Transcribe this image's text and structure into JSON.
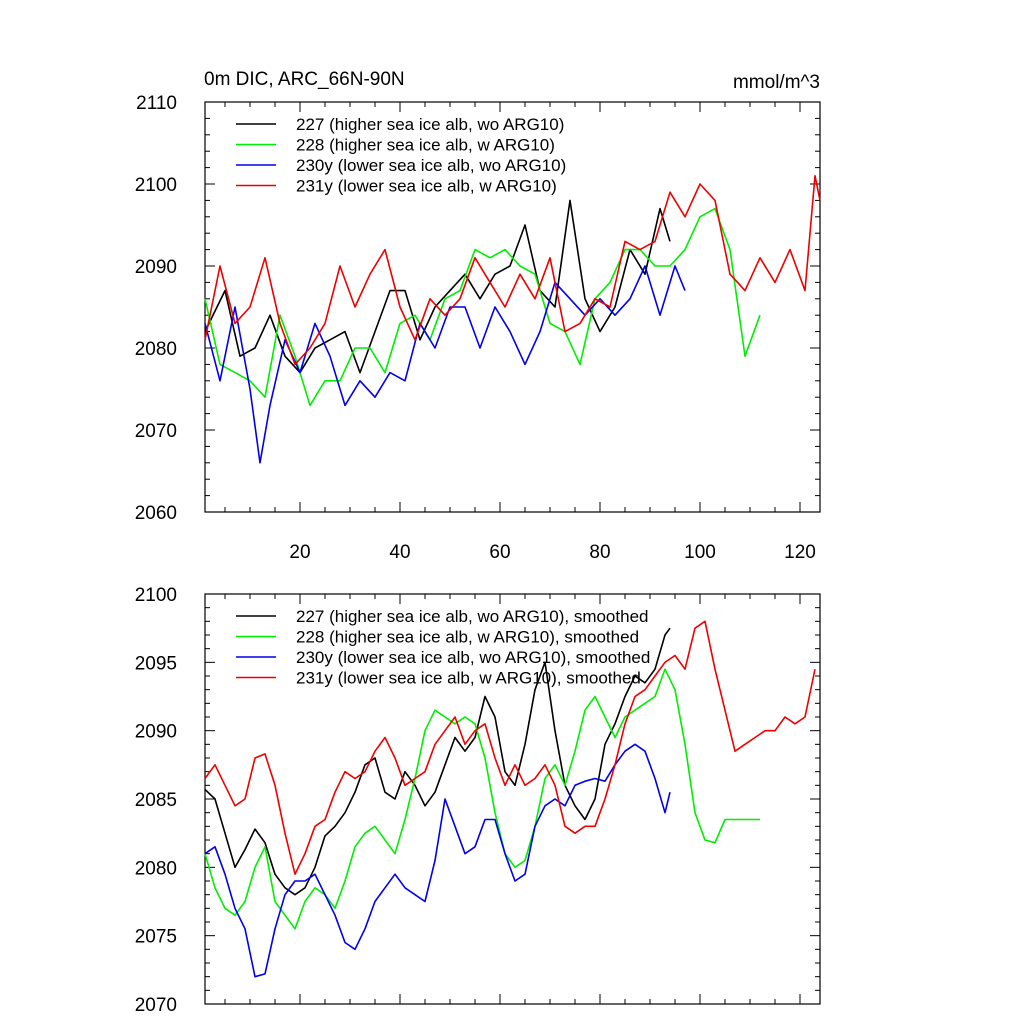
{
  "chart_data": [
    {
      "type": "line",
      "title": "0m DIC, ARC_66N-90N",
      "units": "mmol/m^3",
      "xlim": [
        1,
        124
      ],
      "ylim": [
        2060,
        2110
      ],
      "yticks": [
        2060,
        2070,
        2080,
        2090,
        2100,
        2110
      ],
      "xticks": [
        20,
        40,
        60,
        80,
        100,
        120
      ],
      "legend_position": "top-left",
      "series": [
        {
          "name": "227 (higher sea ice alb, wo ARG10)",
          "color": "#000000",
          "x": [
            1,
            5,
            8,
            11,
            14,
            17,
            20,
            23,
            26,
            29,
            32,
            35,
            38,
            41,
            44,
            47,
            50,
            53,
            56,
            59,
            62,
            65,
            68,
            71,
            74,
            77,
            80,
            83,
            86,
            89,
            92,
            94
          ],
          "y": [
            2082,
            2087,
            2079,
            2080,
            2084,
            2079,
            2077,
            2080,
            2081,
            2082,
            2077,
            2082,
            2087,
            2087,
            2081,
            2085,
            2087,
            2089,
            2086,
            2089,
            2090,
            2095,
            2087,
            2085,
            2098,
            2086,
            2082,
            2085,
            2092,
            2089,
            2097,
            2093
          ]
        },
        {
          "name": "228 (higher sea ice alb, w ARG10)",
          "color": "#00ee00",
          "x": [
            1,
            4,
            7,
            10,
            13,
            16,
            19,
            22,
            25,
            28,
            31,
            34,
            37,
            40,
            43,
            46,
            49,
            52,
            55,
            58,
            61,
            64,
            67,
            70,
            73,
            76,
            79,
            82,
            85,
            88,
            91,
            94,
            97,
            100,
            103,
            106,
            109,
            112
          ],
          "y": [
            2086,
            2078,
            2077,
            2076,
            2074,
            2084,
            2079,
            2073,
            2076,
            2076,
            2080,
            2080,
            2077,
            2083,
            2084,
            2081,
            2086,
            2087,
            2092,
            2091,
            2092,
            2090,
            2089,
            2083,
            2082,
            2078,
            2086,
            2088,
            2092,
            2092,
            2090,
            2090,
            2092,
            2096,
            2097,
            2092,
            2079,
            2084
          ]
        },
        {
          "name": "230y (lower sea ice alb, wo ARG10)",
          "color": "#0000ee",
          "x": [
            1,
            4,
            7,
            10,
            12,
            14,
            17,
            20,
            23,
            26,
            29,
            32,
            35,
            38,
            41,
            44,
            47,
            50,
            53,
            56,
            59,
            62,
            65,
            68,
            71,
            74,
            77,
            80,
            83,
            86,
            89,
            92,
            95,
            97
          ],
          "y": [
            2083,
            2076,
            2085,
            2075,
            2066,
            2073,
            2081,
            2077,
            2083,
            2079,
            2073,
            2076,
            2074,
            2077,
            2076,
            2083,
            2080,
            2085,
            2085,
            2080,
            2085,
            2082,
            2078,
            2082,
            2088,
            2086,
            2084,
            2086,
            2084,
            2086,
            2090,
            2084,
            2090,
            2087
          ]
        },
        {
          "name": "231y (lower sea ice alb, w ARG10)",
          "color": "#ee0000",
          "x": [
            1,
            4,
            7,
            10,
            13,
            16,
            19,
            22,
            25,
            28,
            31,
            34,
            37,
            40,
            43,
            46,
            49,
            52,
            55,
            58,
            61,
            64,
            67,
            70,
            73,
            76,
            79,
            82,
            85,
            88,
            91,
            94,
            97,
            100,
            103,
            106,
            109,
            112,
            115,
            118,
            121,
            123,
            124
          ],
          "y": [
            2081,
            2090,
            2083,
            2085,
            2091,
            2083,
            2078,
            2080,
            2083,
            2090,
            2085,
            2089,
            2092,
            2085,
            2081,
            2086,
            2084,
            2086,
            2091,
            2088,
            2085,
            2089,
            2086,
            2091,
            2082,
            2083,
            2086,
            2085,
            2093,
            2092,
            2093,
            2099,
            2096,
            2100,
            2098,
            2089,
            2087,
            2091,
            2088,
            2092,
            2087,
            2101,
            2098
          ]
        }
      ]
    },
    {
      "type": "line",
      "title": "",
      "xlim": [
        1,
        124
      ],
      "ylim": [
        2070,
        2100
      ],
      "yticks": [
        2070,
        2075,
        2080,
        2085,
        2090,
        2095,
        2100
      ],
      "legend_position": "top-left",
      "series": [
        {
          "name": "227 (higher sea ice alb, wo ARG10), smoothed",
          "color": "#000000",
          "x": [
            1,
            3,
            5,
            7,
            9,
            11,
            13,
            15,
            17,
            19,
            21,
            23,
            25,
            27,
            29,
            31,
            33,
            35,
            37,
            39,
            41,
            43,
            45,
            47,
            49,
            51,
            53,
            55,
            57,
            59,
            61,
            63,
            65,
            67,
            69,
            71,
            73,
            75,
            77,
            79,
            81,
            83,
            85,
            87,
            89,
            91,
            93,
            94
          ],
          "y": [
            2085.7,
            2085.0,
            2082.5,
            2080.0,
            2081.3,
            2082.8,
            2081.8,
            2079.5,
            2078.5,
            2078.0,
            2078.5,
            2080.0,
            2082.3,
            2083.0,
            2084.0,
            2085.5,
            2087.5,
            2088.0,
            2085.5,
            2085.0,
            2087.0,
            2086.0,
            2084.5,
            2085.5,
            2087.5,
            2089.5,
            2088.5,
            2089.5,
            2092.5,
            2091.0,
            2087.0,
            2086.0,
            2089.0,
            2093.0,
            2095.0,
            2090.0,
            2086.0,
            2084.5,
            2083.5,
            2085.0,
            2089.0,
            2090.5,
            2092.5,
            2094.0,
            2093.5,
            2094.5,
            2097.0,
            2097.5
          ]
        },
        {
          "name": "228 (higher sea ice alb, w ARG10), smoothed",
          "color": "#00ee00",
          "x": [
            1,
            3,
            5,
            7,
            9,
            11,
            13,
            15,
            17,
            19,
            21,
            23,
            25,
            27,
            29,
            31,
            33,
            35,
            37,
            39,
            41,
            43,
            45,
            47,
            49,
            51,
            53,
            55,
            57,
            59,
            61,
            63,
            65,
            67,
            69,
            71,
            73,
            75,
            77,
            79,
            81,
            83,
            85,
            87,
            89,
            91,
            93,
            95,
            97,
            99,
            101,
            103,
            105,
            107,
            109,
            111,
            112
          ],
          "y": [
            2081.0,
            2078.5,
            2077.0,
            2076.5,
            2077.5,
            2080.0,
            2081.5,
            2077.5,
            2076.5,
            2075.5,
            2077.5,
            2078.5,
            2078.0,
            2077.0,
            2079.0,
            2081.5,
            2082.5,
            2083.0,
            2082.0,
            2081.0,
            2083.5,
            2086.5,
            2090.0,
            2091.5,
            2091.0,
            2090.5,
            2091.0,
            2090.5,
            2088.0,
            2084.0,
            2081.0,
            2080.0,
            2080.5,
            2083.0,
            2086.5,
            2087.5,
            2086.0,
            2088.5,
            2091.5,
            2092.5,
            2091.0,
            2089.5,
            2091.0,
            2091.5,
            2092.0,
            2092.5,
            2094.5,
            2093.0,
            2089.0,
            2084.0,
            2082.0,
            2081.8,
            2083.5,
            2083.5,
            2083.5,
            2083.5,
            2083.5
          ]
        },
        {
          "name": "230y (lower sea ice alb, wo ARG10), smoothed",
          "color": "#0000ee",
          "x": [
            1,
            3,
            5,
            7,
            9,
            11,
            13,
            15,
            17,
            19,
            21,
            23,
            25,
            27,
            29,
            31,
            33,
            35,
            37,
            39,
            41,
            43,
            45,
            47,
            49,
            51,
            53,
            55,
            57,
            59,
            61,
            63,
            65,
            67,
            69,
            71,
            73,
            75,
            77,
            79,
            81,
            83,
            85,
            87,
            89,
            91,
            93,
            94
          ],
          "y": [
            2081.0,
            2081.5,
            2079.5,
            2077.0,
            2075.5,
            2072.0,
            2072.2,
            2075.5,
            2078.0,
            2079.0,
            2079.0,
            2079.5,
            2078.0,
            2076.5,
            2074.5,
            2074.0,
            2075.5,
            2077.5,
            2078.5,
            2079.5,
            2078.5,
            2078.0,
            2077.5,
            2080.5,
            2085.0,
            2083.0,
            2081.0,
            2081.5,
            2083.5,
            2083.5,
            2081.0,
            2079.0,
            2079.5,
            2083.0,
            2084.5,
            2085.0,
            2084.5,
            2086.0,
            2086.3,
            2086.5,
            2086.3,
            2087.5,
            2088.5,
            2089.0,
            2088.5,
            2086.5,
            2084.0,
            2085.5
          ]
        },
        {
          "name": "231y (lower sea ice alb, w ARG10), smoothed",
          "color": "#ee0000",
          "x": [
            1,
            3,
            5,
            7,
            9,
            11,
            13,
            15,
            17,
            19,
            21,
            23,
            25,
            27,
            29,
            31,
            33,
            35,
            37,
            39,
            41,
            43,
            45,
            47,
            49,
            51,
            53,
            55,
            57,
            59,
            61,
            63,
            65,
            67,
            69,
            71,
            73,
            75,
            77,
            79,
            81,
            83,
            85,
            87,
            89,
            91,
            93,
            95,
            97,
            99,
            101,
            103,
            105,
            107,
            109,
            111,
            113,
            115,
            117,
            119,
            121,
            123
          ],
          "y": [
            2086.5,
            2087.5,
            2086.0,
            2084.5,
            2085.0,
            2088.0,
            2088.3,
            2086.0,
            2082.5,
            2079.5,
            2081.0,
            2083.0,
            2083.5,
            2085.5,
            2087.0,
            2086.5,
            2087.0,
            2088.5,
            2089.5,
            2088.0,
            2086.0,
            2086.5,
            2087.0,
            2089.0,
            2090.0,
            2091.0,
            2089.0,
            2090.0,
            2090.5,
            2088.0,
            2086.0,
            2087.5,
            2086.0,
            2086.5,
            2087.5,
            2086.0,
            2083.0,
            2082.5,
            2083.0,
            2083.0,
            2085.0,
            2087.5,
            2090.5,
            2092.5,
            2093.0,
            2094.0,
            2095.0,
            2095.5,
            2094.5,
            2097.5,
            2098.0,
            2094.5,
            2091.5,
            2088.5,
            2089.0,
            2089.5,
            2090.0,
            2090.0,
            2091.0,
            2090.5,
            2091.0,
            2094.5
          ]
        }
      ]
    }
  ]
}
